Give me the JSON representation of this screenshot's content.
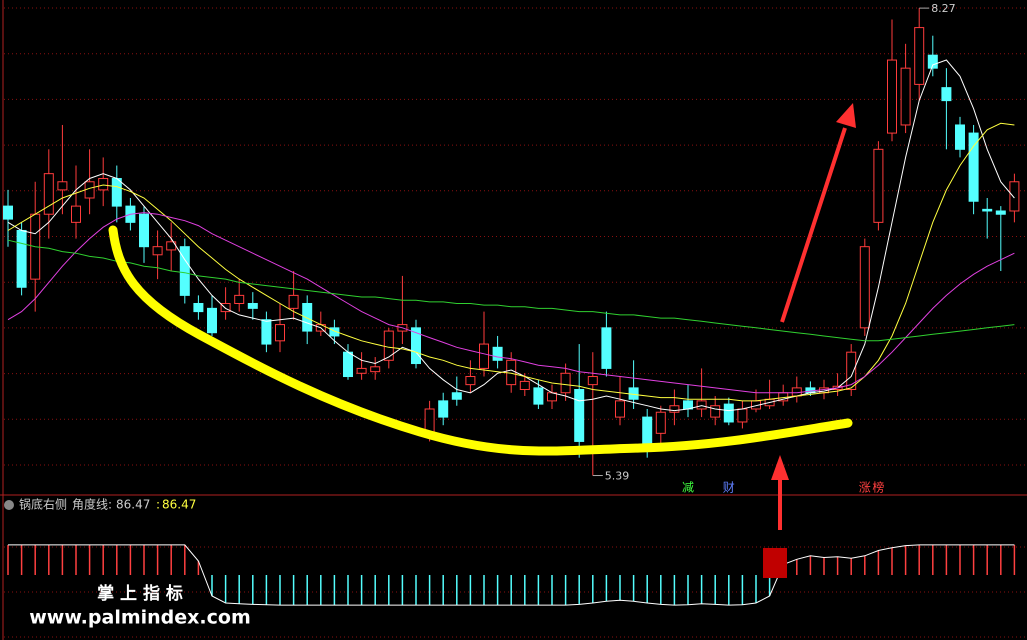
{
  "chart_data": {
    "type": "candlestick",
    "ylim": [
      5.27,
      8.32
    ],
    "up_color": "#ff3c3c",
    "down_color": "#54ffff",
    "open": [
      7.05,
      6.9,
      6.6,
      7.0,
      7.15,
      6.95,
      7.1,
      7.15,
      7.22,
      7.05,
      7.0,
      6.75,
      6.78,
      6.8,
      6.45,
      6.42,
      6.4,
      6.45,
      6.45,
      6.35,
      6.22,
      6.42,
      6.45,
      6.28,
      6.3,
      6.15,
      6.02,
      6.03,
      6.1,
      6.28,
      6.3,
      5.65,
      5.85,
      5.9,
      5.95,
      6.05,
      6.18,
      5.95,
      5.92,
      5.93,
      5.85,
      5.9,
      5.92,
      5.95,
      6.3,
      5.75,
      5.93,
      5.75,
      5.65,
      5.78,
      5.85,
      5.8,
      5.75,
      5.83,
      5.72,
      5.8,
      5.82,
      5.85,
      5.88,
      5.93,
      5.9,
      5.92,
      5.92,
      6.3,
      6.95,
      7.5,
      7.55,
      7.8,
      7.98,
      7.78,
      7.55,
      7.5,
      7.03,
      7.02,
      7.02
    ],
    "high": [
      7.15,
      6.95,
      7.2,
      7.4,
      7.55,
      7.3,
      7.4,
      7.35,
      7.3,
      7.1,
      7.05,
      6.9,
      6.95,
      6.85,
      6.5,
      6.5,
      6.55,
      6.6,
      6.52,
      6.4,
      6.45,
      6.65,
      6.5,
      6.4,
      6.35,
      6.2,
      6.15,
      6.12,
      6.3,
      6.62,
      6.35,
      5.85,
      5.9,
      6.0,
      6.1,
      6.4,
      6.25,
      6.15,
      6.02,
      5.98,
      5.95,
      6.08,
      6.2,
      6.15,
      6.4,
      6.0,
      6.1,
      5.8,
      5.82,
      5.92,
      5.95,
      6.05,
      5.88,
      5.87,
      5.85,
      5.92,
      5.98,
      5.95,
      6.0,
      5.97,
      5.98,
      6.02,
      6.2,
      6.85,
      7.45,
      8.2,
      8.05,
      8.27,
      8.1,
      7.9,
      7.6,
      7.55,
      7.1,
      7.05,
      7.25
    ],
    "low": [
      6.8,
      6.5,
      6.4,
      6.85,
      7.0,
      6.85,
      7.0,
      7.05,
      6.95,
      6.9,
      6.7,
      6.6,
      6.65,
      6.45,
      6.35,
      6.25,
      6.35,
      6.4,
      6.35,
      6.15,
      6.15,
      6.35,
      6.2,
      6.25,
      6.2,
      5.98,
      5.98,
      5.98,
      6.05,
      6.2,
      6.05,
      5.6,
      5.7,
      5.82,
      5.9,
      6.0,
      6.05,
      5.9,
      5.88,
      5.8,
      5.8,
      5.85,
      5.5,
      5.39,
      6.0,
      5.7,
      5.8,
      5.5,
      5.55,
      5.7,
      5.75,
      5.75,
      5.7,
      5.7,
      5.68,
      5.78,
      5.8,
      5.82,
      5.84,
      5.88,
      5.86,
      5.88,
      5.88,
      6.25,
      6.9,
      7.45,
      7.5,
      7.7,
      7.85,
      7.4,
      7.35,
      7.0,
      6.85,
      6.65,
      6.95
    ],
    "close": [
      6.97,
      6.55,
      7.0,
      7.25,
      7.2,
      7.05,
      7.2,
      7.22,
      7.05,
      6.95,
      6.8,
      6.8,
      6.83,
      6.5,
      6.4,
      6.27,
      6.45,
      6.5,
      6.42,
      6.2,
      6.32,
      6.5,
      6.28,
      6.32,
      6.25,
      6.0,
      6.05,
      6.06,
      6.28,
      6.32,
      6.08,
      5.8,
      5.75,
      5.86,
      6.0,
      6.2,
      6.1,
      6.1,
      5.97,
      5.83,
      5.9,
      6.02,
      5.6,
      6.0,
      6.05,
      5.85,
      5.86,
      5.58,
      5.78,
      5.82,
      5.8,
      5.85,
      5.82,
      5.72,
      5.8,
      5.85,
      5.86,
      5.9,
      5.93,
      5.9,
      5.93,
      5.94,
      6.15,
      6.8,
      7.4,
      7.95,
      7.9,
      8.15,
      7.9,
      7.7,
      7.4,
      7.08,
      7.02,
      7.0,
      7.2
    ],
    "series": [
      {
        "color": "#ffffff",
        "values": [
          6.95,
          6.9,
          6.88,
          6.95,
          7.05,
          7.15,
          7.22,
          7.25,
          7.22,
          7.15,
          7.05,
          6.95,
          6.85,
          6.72,
          6.6,
          6.5,
          6.42,
          6.38,
          6.36,
          6.34,
          6.35,
          6.36,
          6.33,
          6.3,
          6.22,
          6.15,
          6.1,
          6.08,
          6.12,
          6.18,
          6.15,
          6.05,
          5.98,
          5.92,
          5.9,
          5.95,
          6.02,
          6.04,
          6.0,
          5.95,
          5.9,
          5.88,
          5.85,
          5.86,
          5.88,
          5.86,
          5.84,
          5.82,
          5.8,
          5.79,
          5.8,
          5.82,
          5.8,
          5.79,
          5.8,
          5.82,
          5.84,
          5.86,
          5.88,
          5.9,
          5.91,
          5.93,
          6.0,
          6.2,
          6.55,
          6.95,
          7.35,
          7.7,
          7.92,
          7.95,
          7.85,
          7.65,
          7.4,
          7.2,
          7.1
        ]
      },
      {
        "color": "#ffff40",
        "values": [
          6.9,
          6.95,
          7.0,
          7.05,
          7.1,
          7.13,
          7.16,
          7.18,
          7.17,
          7.14,
          7.1,
          7.03,
          6.96,
          6.88,
          6.8,
          6.73,
          6.66,
          6.6,
          6.55,
          6.5,
          6.45,
          6.4,
          6.36,
          6.32,
          6.28,
          6.25,
          6.22,
          6.2,
          6.18,
          6.17,
          6.15,
          6.12,
          6.1,
          6.07,
          6.05,
          6.04,
          6.03,
          6.02,
          6.0,
          5.98,
          5.96,
          5.95,
          5.94,
          5.92,
          5.91,
          5.9,
          5.89,
          5.88,
          5.87,
          5.87,
          5.86,
          5.86,
          5.86,
          5.86,
          5.85,
          5.85,
          5.86,
          5.87,
          5.88,
          5.89,
          5.9,
          5.91,
          5.93,
          6.0,
          6.1,
          6.25,
          6.45,
          6.7,
          6.95,
          7.15,
          7.3,
          7.42,
          7.52,
          7.56,
          7.55
        ]
      },
      {
        "color": "#e040e0",
        "values": [
          6.35,
          6.4,
          6.48,
          6.58,
          6.68,
          6.77,
          6.85,
          6.92,
          6.97,
          7.0,
          7.01,
          7.0,
          6.98,
          6.96,
          6.93,
          6.88,
          6.84,
          6.8,
          6.76,
          6.72,
          6.68,
          6.64,
          6.6,
          6.55,
          6.5,
          6.45,
          6.4,
          6.36,
          6.32,
          6.3,
          6.27,
          6.24,
          6.21,
          6.18,
          6.16,
          6.14,
          6.12,
          6.11,
          6.09,
          6.07,
          6.06,
          6.05,
          6.03,
          6.02,
          6.01,
          6.0,
          5.99,
          5.98,
          5.97,
          5.96,
          5.95,
          5.94,
          5.93,
          5.92,
          5.91,
          5.9,
          5.9,
          5.9,
          5.9,
          5.91,
          5.92,
          5.93,
          5.95,
          6.0,
          6.07,
          6.15,
          6.24,
          6.33,
          6.42,
          6.5,
          6.57,
          6.63,
          6.68,
          6.72,
          6.76
        ]
      },
      {
        "color": "#30d030",
        "values": [
          6.84,
          6.82,
          6.8,
          6.79,
          6.77,
          6.76,
          6.74,
          6.73,
          6.71,
          6.7,
          6.68,
          6.67,
          6.65,
          6.64,
          6.62,
          6.61,
          6.6,
          6.58,
          6.57,
          6.56,
          6.55,
          6.54,
          6.53,
          6.52,
          6.51,
          6.5,
          6.49,
          6.49,
          6.48,
          6.47,
          6.47,
          6.46,
          6.46,
          6.45,
          6.45,
          6.44,
          6.44,
          6.43,
          6.43,
          6.42,
          6.42,
          6.41,
          6.4,
          6.4,
          6.39,
          6.38,
          6.38,
          6.37,
          6.36,
          6.36,
          6.35,
          6.34,
          6.33,
          6.32,
          6.31,
          6.3,
          6.29,
          6.28,
          6.27,
          6.26,
          6.25,
          6.24,
          6.23,
          6.22,
          6.22,
          6.23,
          6.24,
          6.25,
          6.26,
          6.27,
          6.28,
          6.29,
          6.3,
          6.31,
          6.32
        ]
      }
    ],
    "max_label": 8.27,
    "min_label": 5.39,
    "markers": [
      {
        "text": "减",
        "color": "#40ff40",
        "index": 50
      },
      {
        "text": "财",
        "color": "#6080ff",
        "index": 53
      },
      {
        "text": "涨",
        "color": "#ff4040",
        "index": 63
      },
      {
        "text": "榜",
        "color": "#ff4040",
        "index": 64
      }
    ],
    "indicator": {
      "title": "锅底右侧",
      "line_label": "角度线:",
      "value": 86.47,
      "value2_label": ":",
      "value2": 86.47,
      "ylim": [
        -100,
        100
      ],
      "values": [
        86,
        86,
        86,
        86,
        86,
        86,
        86,
        86,
        86,
        86,
        86,
        86,
        86,
        86,
        40,
        -60,
        -80,
        -82,
        -84,
        -85,
        -86,
        -86,
        -86,
        -86,
        -86,
        -86,
        -86,
        -86,
        -86,
        -86,
        -86,
        -86,
        -86,
        -86,
        -86,
        -86,
        -86,
        -86,
        -86,
        -86,
        -86,
        -86,
        -84,
        -80,
        -75,
        -72,
        -75,
        -80,
        -84,
        -86,
        -85,
        -82,
        -84,
        -86,
        -85,
        -80,
        -60,
        30,
        45,
        55,
        50,
        52,
        48,
        55,
        70,
        78,
        84,
        86,
        86,
        86,
        86,
        86,
        86,
        86,
        86
      ]
    },
    "watermark": {
      "title": "掌 上 指 标",
      "url": "www.palmindex.com"
    }
  }
}
